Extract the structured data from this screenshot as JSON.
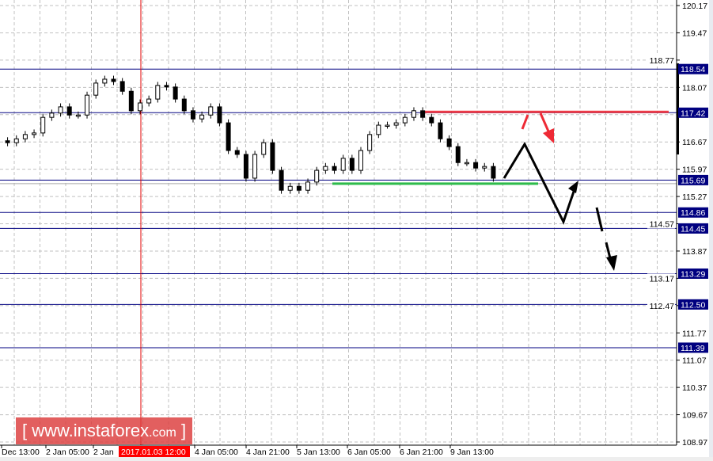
{
  "chart_data": {
    "type": "candlestick",
    "y_ticks": [
      "120.17",
      "119.47",
      "118.77",
      "118.07",
      "116.67",
      "115.97",
      "115.27",
      "114.57",
      "113.87",
      "113.17",
      "112.47",
      "111.77",
      "111.07",
      "110.37",
      "109.67",
      "108.97"
    ],
    "ylim": [
      108.97,
      120.17
    ],
    "x_ticks": [
      "Dec 13:00",
      "2 Jan 05:00",
      "2 Jan",
      "4 Jan 05:00",
      "4 Jan 21:00",
      "5 Jan 13:00",
      "6 Jan 05:00",
      "6 Jan 21:00",
      "9 Jan 13:00"
    ],
    "crosshair_label": "2017.01.03 12:00",
    "grid": true,
    "closes": [
      116.65,
      116.75,
      116.86,
      116.9,
      117.3,
      117.41,
      117.57,
      117.36,
      117.36,
      117.87,
      118.18,
      118.28,
      118.22,
      117.97,
      117.47,
      117.67,
      117.77,
      118.12,
      118.08,
      117.77,
      117.47,
      117.26,
      117.36,
      117.57,
      117.16,
      116.45,
      116.35,
      115.74,
      116.35,
      116.65,
      115.94,
      115.43,
      115.53,
      115.43,
      115.64,
      115.94,
      116.04,
      115.94,
      116.25,
      115.94,
      116.45,
      116.86,
      117.1,
      117.1,
      117.16,
      117.3,
      117.47,
      117.3,
      117.16,
      116.75,
      116.55,
      116.14,
      116.14,
      116.0,
      116.04,
      115.74
    ],
    "levels": [
      {
        "value": 118.54,
        "label": "118.54"
      },
      {
        "value": 117.42,
        "label": "117.42"
      },
      {
        "value": 115.69,
        "label": "115.69"
      },
      {
        "value": 114.86,
        "label": "114.86"
      },
      {
        "value": 114.45,
        "label": "114.45"
      },
      {
        "value": 113.29,
        "label": "113.29"
      },
      {
        "value": 112.5,
        "label": "112.50"
      },
      {
        "value": 111.39,
        "label": "111.39"
      }
    ],
    "resistance": 117.44,
    "support": 115.6,
    "colors": {
      "level": "#000080",
      "resistance": "#ee2a35",
      "support": "#2dbb4a",
      "forecast": "#000000",
      "crosshair": "#e00000"
    }
  },
  "watermark": {
    "bracket_open": "[",
    "text": "www.instaforex",
    "suffix": ".com",
    "bracket_close": "]"
  }
}
